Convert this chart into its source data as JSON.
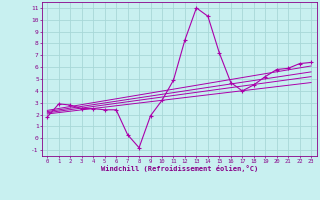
{
  "xlabel": "Windchill (Refroidissement éolien,°C)",
  "xlim": [
    -0.5,
    23.5
  ],
  "ylim": [
    -1.5,
    11.5
  ],
  "yticks": [
    -1,
    0,
    1,
    2,
    3,
    4,
    5,
    6,
    7,
    8,
    9,
    10,
    11
  ],
  "xticks": [
    0,
    1,
    2,
    3,
    4,
    5,
    6,
    7,
    8,
    9,
    10,
    11,
    12,
    13,
    14,
    15,
    16,
    17,
    18,
    19,
    20,
    21,
    22,
    23
  ],
  "background_color": "#c8f0f0",
  "grid_color": "#a8d8d8",
  "line_color": "#aa00aa",
  "curve1_x": [
    0,
    1,
    2,
    3,
    4,
    5,
    6,
    7,
    8,
    9,
    10,
    11,
    12,
    13,
    14,
    15,
    16,
    17,
    18,
    19,
    20,
    21,
    22,
    23
  ],
  "curve1_y": [
    1.8,
    2.9,
    2.8,
    2.5,
    2.5,
    2.4,
    2.4,
    0.3,
    -0.8,
    1.9,
    3.2,
    4.9,
    8.3,
    11.0,
    10.3,
    7.2,
    4.7,
    4.0,
    4.5,
    5.2,
    5.8,
    5.9,
    6.3,
    6.4
  ],
  "line1_x": [
    0,
    23
  ],
  "line1_y": [
    2.15,
    5.2
  ],
  "line2_x": [
    0,
    23
  ],
  "line2_y": [
    2.25,
    5.6
  ],
  "line3_x": [
    0,
    23
  ],
  "line3_y": [
    2.35,
    6.1
  ],
  "line4_x": [
    0,
    23
  ],
  "line4_y": [
    2.05,
    4.7
  ]
}
